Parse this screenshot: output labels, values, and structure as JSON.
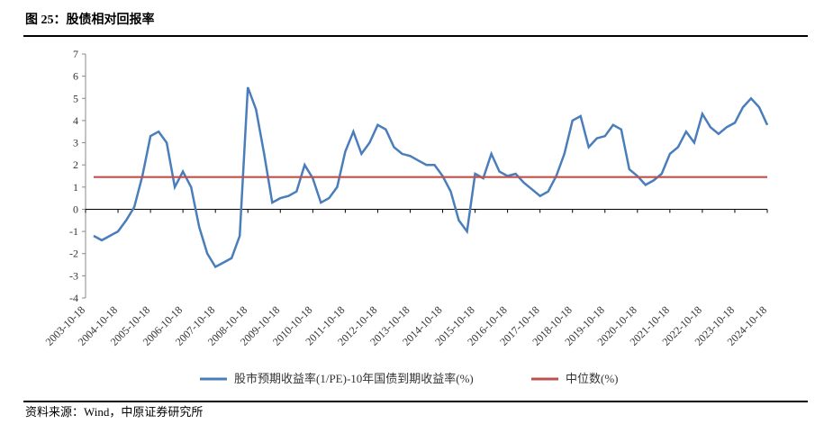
{
  "chart_data": {
    "type": "line",
    "title": "图 25：股债相对回报率",
    "source": "资料来源：Wind，中原证券研究所",
    "categories": [
      "2003-10-18",
      null,
      null,
      null,
      "2004-10-18",
      null,
      null,
      null,
      "2005-10-18",
      null,
      null,
      null,
      "2006-10-18",
      null,
      null,
      null,
      "2007-10-18",
      null,
      null,
      null,
      "2008-10-18",
      null,
      null,
      null,
      "2009-10-18",
      null,
      null,
      null,
      "2010-10-18",
      null,
      null,
      null,
      "2011-10-18",
      null,
      null,
      null,
      "2012-10-18",
      null,
      null,
      null,
      "2013-10-18",
      null,
      null,
      null,
      "2014-10-18",
      null,
      null,
      null,
      "2015-10-18",
      null,
      null,
      null,
      "2016-10-18",
      null,
      null,
      null,
      "2017-10-18",
      null,
      null,
      null,
      "2018-10-18",
      null,
      null,
      null,
      "2019-10-18",
      null,
      null,
      null,
      "2020-10-18",
      null,
      null,
      null,
      "2021-10-18",
      null,
      null,
      null,
      "2022-10-18",
      null,
      null,
      null,
      "2023-10-18",
      null,
      null,
      null,
      "2024-10-18"
    ],
    "series": [
      {
        "name": "股市预期收益率(1/PE)-10年国债到期收益率(%)",
        "color": "#4a7ebb",
        "values": [
          null,
          -1.2,
          -1.4,
          -1.2,
          -1.0,
          -0.5,
          0.1,
          1.5,
          3.3,
          3.5,
          3.0,
          1.0,
          1.7,
          1.0,
          -0.8,
          -2.0,
          -2.6,
          -2.4,
          -2.2,
          -1.2,
          5.5,
          4.5,
          2.5,
          0.3,
          0.5,
          0.6,
          0.8,
          2.0,
          1.4,
          0.3,
          0.5,
          1.0,
          2.6,
          3.5,
          2.5,
          3.0,
          3.8,
          3.6,
          2.8,
          2.5,
          2.4,
          2.2,
          2.0,
          2.0,
          1.5,
          0.8,
          -0.5,
          -1.0,
          1.6,
          1.4,
          2.5,
          1.7,
          1.5,
          1.6,
          1.2,
          0.9,
          0.6,
          0.8,
          1.5,
          2.5,
          4.0,
          4.2,
          2.8,
          3.2,
          3.3,
          3.8,
          3.6,
          1.8,
          1.5,
          1.1,
          1.3,
          1.6,
          2.5,
          2.8,
          3.5,
          3.0,
          4.3,
          3.7,
          3.4,
          3.7,
          3.9,
          4.6,
          5.0,
          4.6,
          3.8
        ]
      },
      {
        "name": "中位数(%)",
        "color": "#c0504d",
        "values": [
          null,
          1.45,
          1.45,
          1.45,
          1.45,
          1.45,
          1.45,
          1.45,
          1.45,
          1.45,
          1.45,
          1.45,
          1.45,
          1.45,
          1.45,
          1.45,
          1.45,
          1.45,
          1.45,
          1.45,
          1.45,
          1.45,
          1.45,
          1.45,
          1.45,
          1.45,
          1.45,
          1.45,
          1.45,
          1.45,
          1.45,
          1.45,
          1.45,
          1.45,
          1.45,
          1.45,
          1.45,
          1.45,
          1.45,
          1.45,
          1.45,
          1.45,
          1.45,
          1.45,
          1.45,
          1.45,
          1.45,
          1.45,
          1.45,
          1.45,
          1.45,
          1.45,
          1.45,
          1.45,
          1.45,
          1.45,
          1.45,
          1.45,
          1.45,
          1.45,
          1.45,
          1.45,
          1.45,
          1.45,
          1.45,
          1.45,
          1.45,
          1.45,
          1.45,
          1.45,
          1.45,
          1.45,
          1.45,
          1.45,
          1.45,
          1.45,
          1.45,
          1.45,
          1.45,
          1.45,
          1.45,
          1.45,
          1.45,
          1.45,
          1.45
        ]
      }
    ],
    "ylim": [
      -4,
      7
    ],
    "yticks": [
      -4,
      -3,
      -2,
      -1,
      0,
      1,
      2,
      3,
      4,
      5,
      6,
      7
    ]
  }
}
